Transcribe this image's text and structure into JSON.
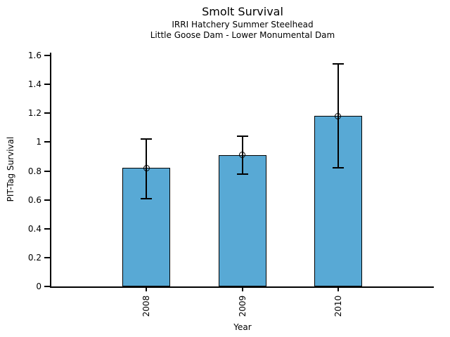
{
  "figure": {
    "title": "Smolt Survival",
    "subtitle1": "IRRI Hatchery Summer Steelhead",
    "subtitle2": "Little Goose Dam - Lower Monumental Dam",
    "xlabel": "Year",
    "ylabel": "PIT-Tag Survival"
  },
  "chart_data": {
    "type": "bar",
    "title": "Smolt Survival",
    "subtitles": [
      "IRRI Hatchery Summer Steelhead",
      "Little Goose Dam - Lower Monumental Dam"
    ],
    "xlabel": "Year",
    "ylabel": "PIT-Tag Survival",
    "categories": [
      "2008",
      "2009",
      "2010"
    ],
    "values": [
      0.82,
      0.91,
      1.18
    ],
    "error_low": [
      0.61,
      0.78,
      0.82
    ],
    "error_high": [
      1.02,
      1.04,
      1.54
    ],
    "ylim": [
      0,
      1.6
    ],
    "yticks": [
      0,
      0.2,
      0.4,
      0.6,
      0.8,
      1,
      1.2,
      1.4,
      1.6
    ],
    "ytick_labels": [
      "0",
      "0.2",
      "0.4",
      "0.6",
      "0.8",
      "1",
      "1.2",
      "1.4",
      "1.6"
    ],
    "grid": false,
    "legend": null,
    "bar_color": "#58A9D5",
    "edge_color": "#000000",
    "error_color": "#000000",
    "marker": "open-circle"
  }
}
